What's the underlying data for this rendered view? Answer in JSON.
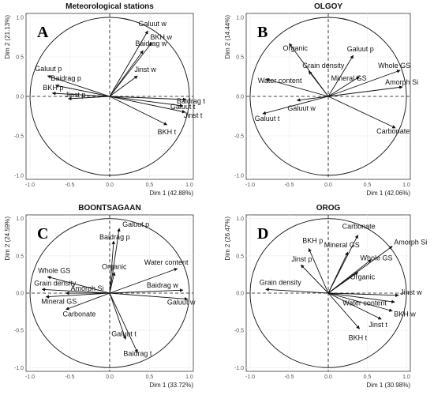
{
  "chart_data": [
    {
      "type": "scatter",
      "panel_letter": "A",
      "title": "Meteorological stations",
      "xlabel": "Dim 1 (42.88%)",
      "ylabel": "Dim 2 (21.13%)",
      "xlim": [
        -1.05,
        1.05
      ],
      "ylim": [
        -1.05,
        1.05
      ],
      "xticks": [
        "-1.0",
        "-0.5",
        "0.0",
        "0.5",
        "1.0"
      ],
      "yticks": [
        "-1.0",
        "-0.5",
        "0.0",
        "0.5",
        "1.0"
      ],
      "vectors": [
        {
          "label": "Galuut w",
          "x": 0.48,
          "y": 0.83
        },
        {
          "label": "BKH w",
          "x": 0.53,
          "y": 0.68
        },
        {
          "label": "Baidrag w",
          "x": 0.42,
          "y": 0.58
        },
        {
          "label": "Jinst w",
          "x": 0.35,
          "y": 0.26
        },
        {
          "label": "Galuut p",
          "x": -0.78,
          "y": 0.26
        },
        {
          "label": "Baidrag p",
          "x": -0.68,
          "y": 0.14
        },
        {
          "label": "BKH p",
          "x": -0.72,
          "y": 0.04
        },
        {
          "label": "Jinst p",
          "x": -0.52,
          "y": -0.03
        },
        {
          "label": "Baidrag t",
          "x": 0.96,
          "y": -0.04
        },
        {
          "label": "Galuut t",
          "x": 0.92,
          "y": -0.12
        },
        {
          "label": "Jinst t",
          "x": 0.95,
          "y": -0.2
        },
        {
          "label": "BKH t",
          "x": 0.72,
          "y": -0.36
        }
      ]
    },
    {
      "type": "scatter",
      "panel_letter": "B",
      "title": "OLGOY",
      "xlabel": "Dim 1 (42.06%)",
      "ylabel": "Dim 2 (14.44%)",
      "xlim": [
        -1.05,
        1.05
      ],
      "ylim": [
        -1.05,
        1.05
      ],
      "xticks": [
        "-1.0",
        "-0.5",
        "0.0",
        "0.5",
        "1.0"
      ],
      "yticks": [
        "-1.0",
        "-0.5",
        "0.0",
        "0.5",
        "1.0"
      ],
      "vectors": [
        {
          "label": "Organic",
          "x": -0.5,
          "y": 0.67
        },
        {
          "label": "Grain density",
          "x": -0.25,
          "y": 0.32
        },
        {
          "label": "Galuut p",
          "x": 0.32,
          "y": 0.52
        },
        {
          "label": "Mineral GS",
          "x": 0.4,
          "y": 0.25
        },
        {
          "label": "Whole GS",
          "x": 0.92,
          "y": 0.33
        },
        {
          "label": "Amorph Si",
          "x": 0.95,
          "y": 0.12
        },
        {
          "label": "Water content",
          "x": -0.8,
          "y": 0.22
        },
        {
          "label": "Galuut w",
          "x": -0.4,
          "y": -0.05
        },
        {
          "label": "Galuut t",
          "x": -0.84,
          "y": -0.22
        },
        {
          "label": "Carbonate",
          "x": 0.86,
          "y": -0.4
        }
      ]
    },
    {
      "type": "scatter",
      "panel_letter": "C",
      "title": "BOONTSAGAAN",
      "xlabel": "Dim 1 (33.72%)",
      "ylabel": "Dim 2 (24.59%)",
      "xlim": [
        -1.05,
        1.05
      ],
      "ylim": [
        -1.05,
        1.05
      ],
      "xticks": [
        "-1.0",
        "-0.5",
        "0.0",
        "0.5",
        "1.0"
      ],
      "yticks": [
        "-1.0",
        "-0.5",
        "0.0",
        "0.5",
        "1.0"
      ],
      "vectors": [
        {
          "label": "Galuut p",
          "x": 0.12,
          "y": 0.87
        },
        {
          "label": "Baidrag p",
          "x": 0.05,
          "y": 0.7
        },
        {
          "label": "Organic",
          "x": 0.06,
          "y": 0.28
        },
        {
          "label": "Water content",
          "x": 0.85,
          "y": 0.33
        },
        {
          "label": "Baidrag w",
          "x": 0.92,
          "y": 0.04
        },
        {
          "label": "Galuut w",
          "x": 0.98,
          "y": -0.08
        },
        {
          "label": "Whole GS",
          "x": -0.78,
          "y": 0.22
        },
        {
          "label": "Grain density",
          "x": -0.85,
          "y": 0.05
        },
        {
          "label": "Amorph Si",
          "x": -0.55,
          "y": 0.0
        },
        {
          "label": "Mineral GS",
          "x": -0.8,
          "y": -0.05
        },
        {
          "label": "Carbonate",
          "x": -0.55,
          "y": -0.22
        },
        {
          "label": "Galuut t",
          "x": 0.2,
          "y": -0.62
        },
        {
          "label": "Baidrag t",
          "x": 0.35,
          "y": -0.8
        }
      ]
    },
    {
      "type": "scatter",
      "panel_letter": "D",
      "title": "OROG",
      "xlabel": "Dim 1 (30.98%)",
      "ylabel": "Dim 2 (26.47%)",
      "xlim": [
        -1.05,
        1.05
      ],
      "ylim": [
        -1.05,
        1.05
      ],
      "xticks": [
        "-1.0",
        "-0.5",
        "0.0",
        "0.5",
        "1.0"
      ],
      "yticks": [
        "-1.0",
        "-0.5",
        "0.0",
        "0.5",
        "1.0"
      ],
      "vectors": [
        {
          "label": "Carbonate",
          "x": 0.38,
          "y": 0.78
        },
        {
          "label": "BKH p",
          "x": -0.25,
          "y": 0.6
        },
        {
          "label": "Mineral GS",
          "x": 0.25,
          "y": 0.55
        },
        {
          "label": "Amorph Si",
          "x": 0.82,
          "y": 0.63
        },
        {
          "label": "Whole GS",
          "x": 0.55,
          "y": 0.45
        },
        {
          "label": "Jinst p",
          "x": -0.35,
          "y": 0.38
        },
        {
          "label": "Organic",
          "x": 0.38,
          "y": 0.28
        },
        {
          "label": "Grain density",
          "x": -0.8,
          "y": 0.05
        },
        {
          "label": "Jinst w",
          "x": 0.9,
          "y": -0.03
        },
        {
          "label": "Water content",
          "x": 0.85,
          "y": -0.12
        },
        {
          "label": "BKH w",
          "x": 0.82,
          "y": -0.24
        },
        {
          "label": "Jinst t",
          "x": 0.68,
          "y": -0.35
        },
        {
          "label": "BKH t",
          "x": 0.4,
          "y": -0.48
        }
      ]
    }
  ]
}
